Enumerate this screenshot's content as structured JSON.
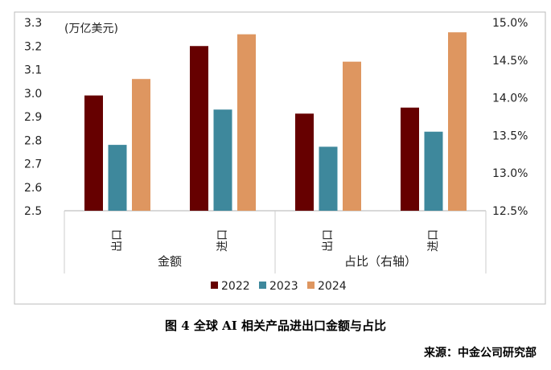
{
  "chart_data": {
    "type": "bar",
    "unit_label": "(万亿美元)",
    "groups": [
      {
        "label": "金额",
        "axis": "left",
        "categories": [
          "出口",
          "进口"
        ]
      },
      {
        "label": "占比（右轴）",
        "axis": "right",
        "categories": [
          "出口",
          "进口"
        ]
      }
    ],
    "series": [
      {
        "name": "2022",
        "color": "#660000",
        "amount": [
          2.99,
          3.2
        ],
        "share": [
          13.79,
          13.87
        ]
      },
      {
        "name": "2023",
        "color": "#3E889C",
        "amount": [
          2.78,
          2.93
        ],
        "share": [
          13.35,
          13.55
        ]
      },
      {
        "name": "2024",
        "color": "#DE9660",
        "amount": [
          3.06,
          3.25
        ],
        "share": [
          14.48,
          14.87
        ]
      }
    ],
    "left_axis": {
      "ylim": [
        2.5,
        3.3
      ],
      "ticks": [
        "2.5",
        "2.6",
        "2.7",
        "2.8",
        "2.9",
        "3.0",
        "3.1",
        "3.2",
        "3.3"
      ]
    },
    "right_axis": {
      "ylim": [
        12.5,
        15.0
      ],
      "ticks": [
        "12.5%",
        "13.0%",
        "13.5%",
        "14.0%",
        "14.5%",
        "15.0%"
      ]
    },
    "legend_position": "bottom"
  },
  "caption": "图 4  全球 AI 相关产品进出口金额与占比",
  "source": "来源：中金公司研究部"
}
